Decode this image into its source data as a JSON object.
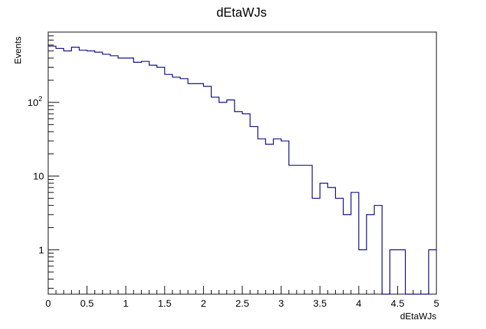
{
  "chart_data": {
    "type": "histogram",
    "title": "dEtaWJs",
    "xlabel": "dEtaWJs",
    "ylabel": "Events",
    "xlim": [
      0,
      5
    ],
    "ylim": [
      0.25,
      900
    ],
    "y_scale": "log",
    "bin_width": 0.1,
    "line_color": "#000080",
    "grid": false,
    "legend": "none",
    "x_tick_labels": [
      "0",
      "0.5",
      "1",
      "1.5",
      "2",
      "2.5",
      "3",
      "3.5",
      "4",
      "4.5",
      "5"
    ],
    "y_tick_labels": [
      {
        "value": 1,
        "label": "1"
      },
      {
        "value": 10,
        "label": "10"
      },
      {
        "value": 100,
        "label": "10",
        "sup": "2"
      }
    ],
    "bins": [
      0,
      0.1,
      0.2,
      0.3,
      0.4,
      0.5,
      0.6,
      0.7,
      0.8,
      0.9,
      1.0,
      1.1,
      1.2,
      1.3,
      1.4,
      1.5,
      1.6,
      1.7,
      1.8,
      1.9,
      2.0,
      2.1,
      2.2,
      2.3,
      2.4,
      2.5,
      2.6,
      2.7,
      2.8,
      2.9,
      3.0,
      3.1,
      3.2,
      3.3,
      3.4,
      3.5,
      3.6,
      3.7,
      3.8,
      3.9,
      4.0,
      4.1,
      4.2,
      4.3,
      4.4,
      4.5,
      4.6,
      4.7,
      4.8,
      4.9
    ],
    "values": [
      580,
      540,
      500,
      560,
      510,
      500,
      480,
      450,
      430,
      400,
      400,
      350,
      360,
      320,
      300,
      240,
      220,
      210,
      180,
      180,
      165,
      118,
      100,
      108,
      75,
      70,
      47,
      32,
      27,
      32,
      30,
      14,
      14,
      14,
      5,
      8,
      7,
      5,
      3,
      6,
      1,
      3,
      4,
      0,
      1,
      1,
      0,
      0,
      0,
      1
    ]
  }
}
